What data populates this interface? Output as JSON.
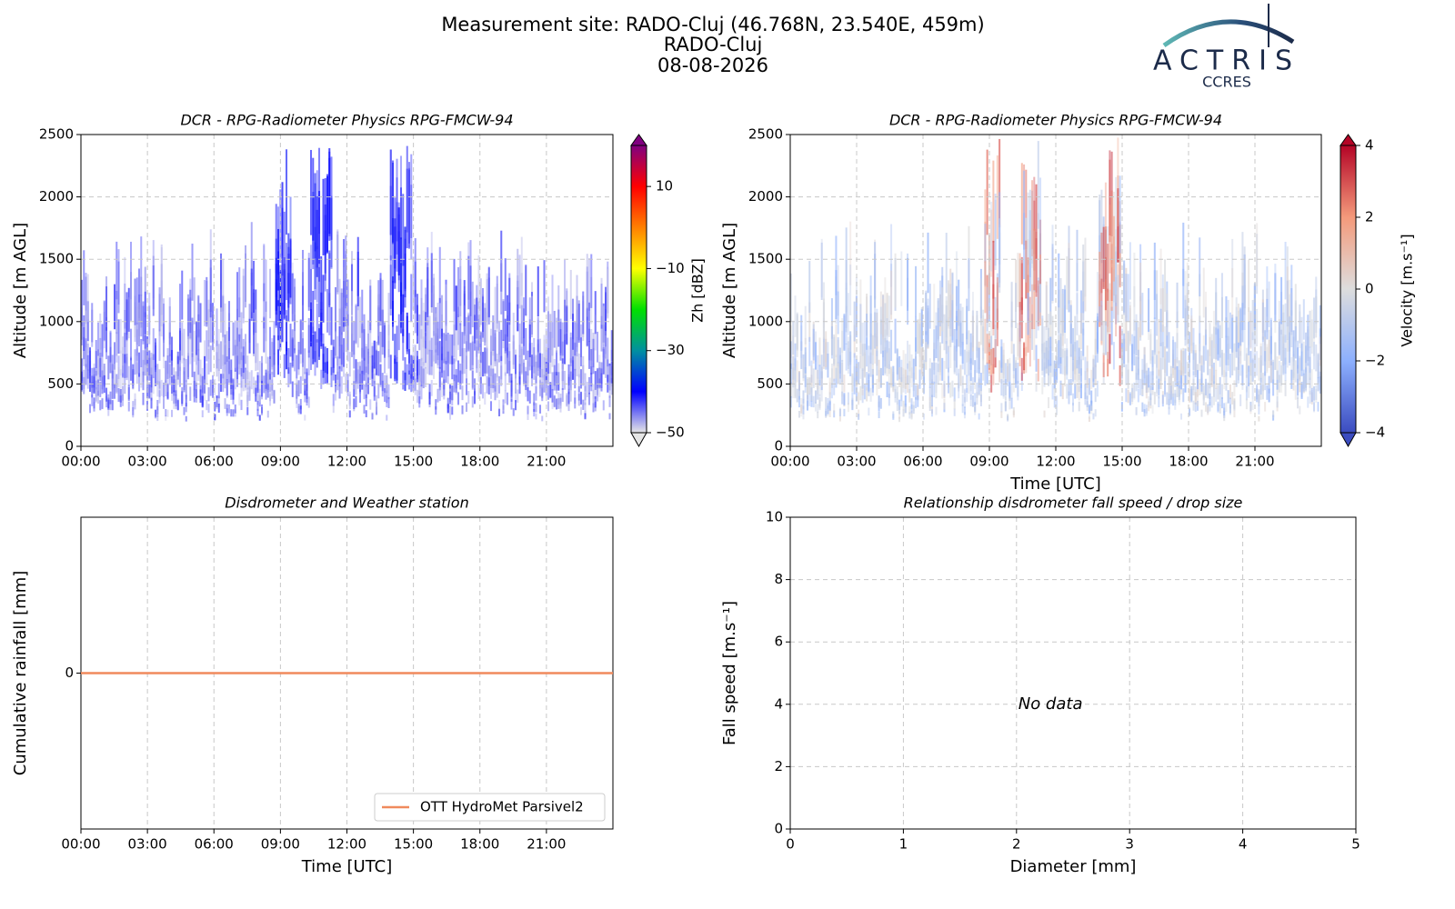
{
  "header": {
    "title": [
      "Measurement site: RADO-Cluj (46.768N, 23.540E, 459m)",
      "RADO-Cluj",
      "08-08-2026"
    ],
    "logo": "ACTRIS",
    "logo_sub": "CCRES"
  },
  "chart_data": [
    {
      "type": "heatmap",
      "title": "DCR - RPG-Radiometer Physics RPG-FMCW-94",
      "ylabel": "Altitude [m AGL]",
      "xlim": [
        0,
        24
      ],
      "xticks": [
        {
          "value": 0,
          "label": "00:00"
        },
        {
          "value": 3,
          "label": "03:00"
        },
        {
          "value": 6,
          "label": "06:00"
        },
        {
          "value": 9,
          "label": "09:00"
        },
        {
          "value": 12,
          "label": "12:00"
        },
        {
          "value": 15,
          "label": "15:00"
        },
        {
          "value": 18,
          "label": "18:00"
        },
        {
          "value": 21,
          "label": "21:00"
        }
      ],
      "ylim": [
        0,
        2500
      ],
      "yticks": [
        0,
        500,
        1000,
        1500,
        2000,
        2500
      ],
      "grid": true,
      "colorbar_label": "Zh [dBZ]",
      "clim": [
        -50,
        20
      ],
      "cticks": [
        {
          "value": -50,
          "label": "−50"
        },
        {
          "value": -30,
          "label": "−30"
        },
        {
          "value": -10,
          "label": "−10"
        },
        10
      ],
      "colormap": [
        "#e6e6e6",
        "#0000ff",
        "#0090a0",
        "#00e000",
        "#ffff00",
        "#ff8000",
        "#ff0000",
        "#800080"
      ]
    },
    {
      "type": "heatmap",
      "title": "DCR - RPG-Radiometer Physics RPG-FMCW-94",
      "ylabel": "Altitude [m AGL]",
      "xlabel": "Time [UTC]",
      "xlim": [
        0,
        24
      ],
      "xticks": [
        {
          "value": 0,
          "label": "00:00"
        },
        {
          "value": 3,
          "label": "03:00"
        },
        {
          "value": 6,
          "label": "06:00"
        },
        {
          "value": 9,
          "label": "09:00"
        },
        {
          "value": 12,
          "label": "12:00"
        },
        {
          "value": 15,
          "label": "15:00"
        },
        {
          "value": 18,
          "label": "18:00"
        },
        {
          "value": 21,
          "label": "21:00"
        }
      ],
      "ylim": [
        0,
        2500
      ],
      "yticks": [
        0,
        500,
        1000,
        1500,
        2000,
        2500
      ],
      "grid": true,
      "colorbar_label": "Velocity [m.s⁻¹]",
      "clim": [
        -4,
        4
      ],
      "cticks": [
        {
          "value": -4,
          "label": "−4"
        },
        {
          "value": -2,
          "label": "−2"
        },
        0,
        2,
        4
      ],
      "colormap": [
        "#3b4cc0",
        "#8db0fe",
        "#dddddd",
        "#f49a7b",
        "#b40426"
      ]
    },
    {
      "type": "line",
      "title": "Disdrometer and Weather station",
      "ylabel": "Cumulative rainfall [mm]",
      "xlabel": "Time [UTC]",
      "xlim": [
        0,
        24
      ],
      "xticks": [
        {
          "value": 0,
          "label": "00:00"
        },
        {
          "value": 3,
          "label": "03:00"
        },
        {
          "value": 6,
          "label": "06:00"
        },
        {
          "value": 9,
          "label": "09:00"
        },
        {
          "value": 12,
          "label": "12:00"
        },
        {
          "value": 15,
          "label": "15:00"
        },
        {
          "value": 18,
          "label": "18:00"
        },
        {
          "value": 21,
          "label": "21:00"
        }
      ],
      "ylim": [
        -1,
        1
      ],
      "yticks": [
        0
      ],
      "grid": true,
      "legend": "lower right",
      "x": [
        0,
        24
      ],
      "series": [
        {
          "name": "OTT HydroMet Parsivel2",
          "color": "#f08a5d",
          "values": [
            0,
            0
          ]
        }
      ]
    },
    {
      "type": "scatter",
      "title": "Relationship disdrometer fall speed / drop size",
      "ylabel": "Fall speed [m.s⁻¹]",
      "xlabel": "Diameter [mm]",
      "xlim": [
        0,
        5
      ],
      "xticks": [
        0,
        1,
        2,
        3,
        4,
        5
      ],
      "ylim": [
        0,
        10
      ],
      "yticks": [
        0,
        2,
        4,
        6,
        8,
        10
      ],
      "grid": true,
      "annotation": "No data"
    }
  ]
}
